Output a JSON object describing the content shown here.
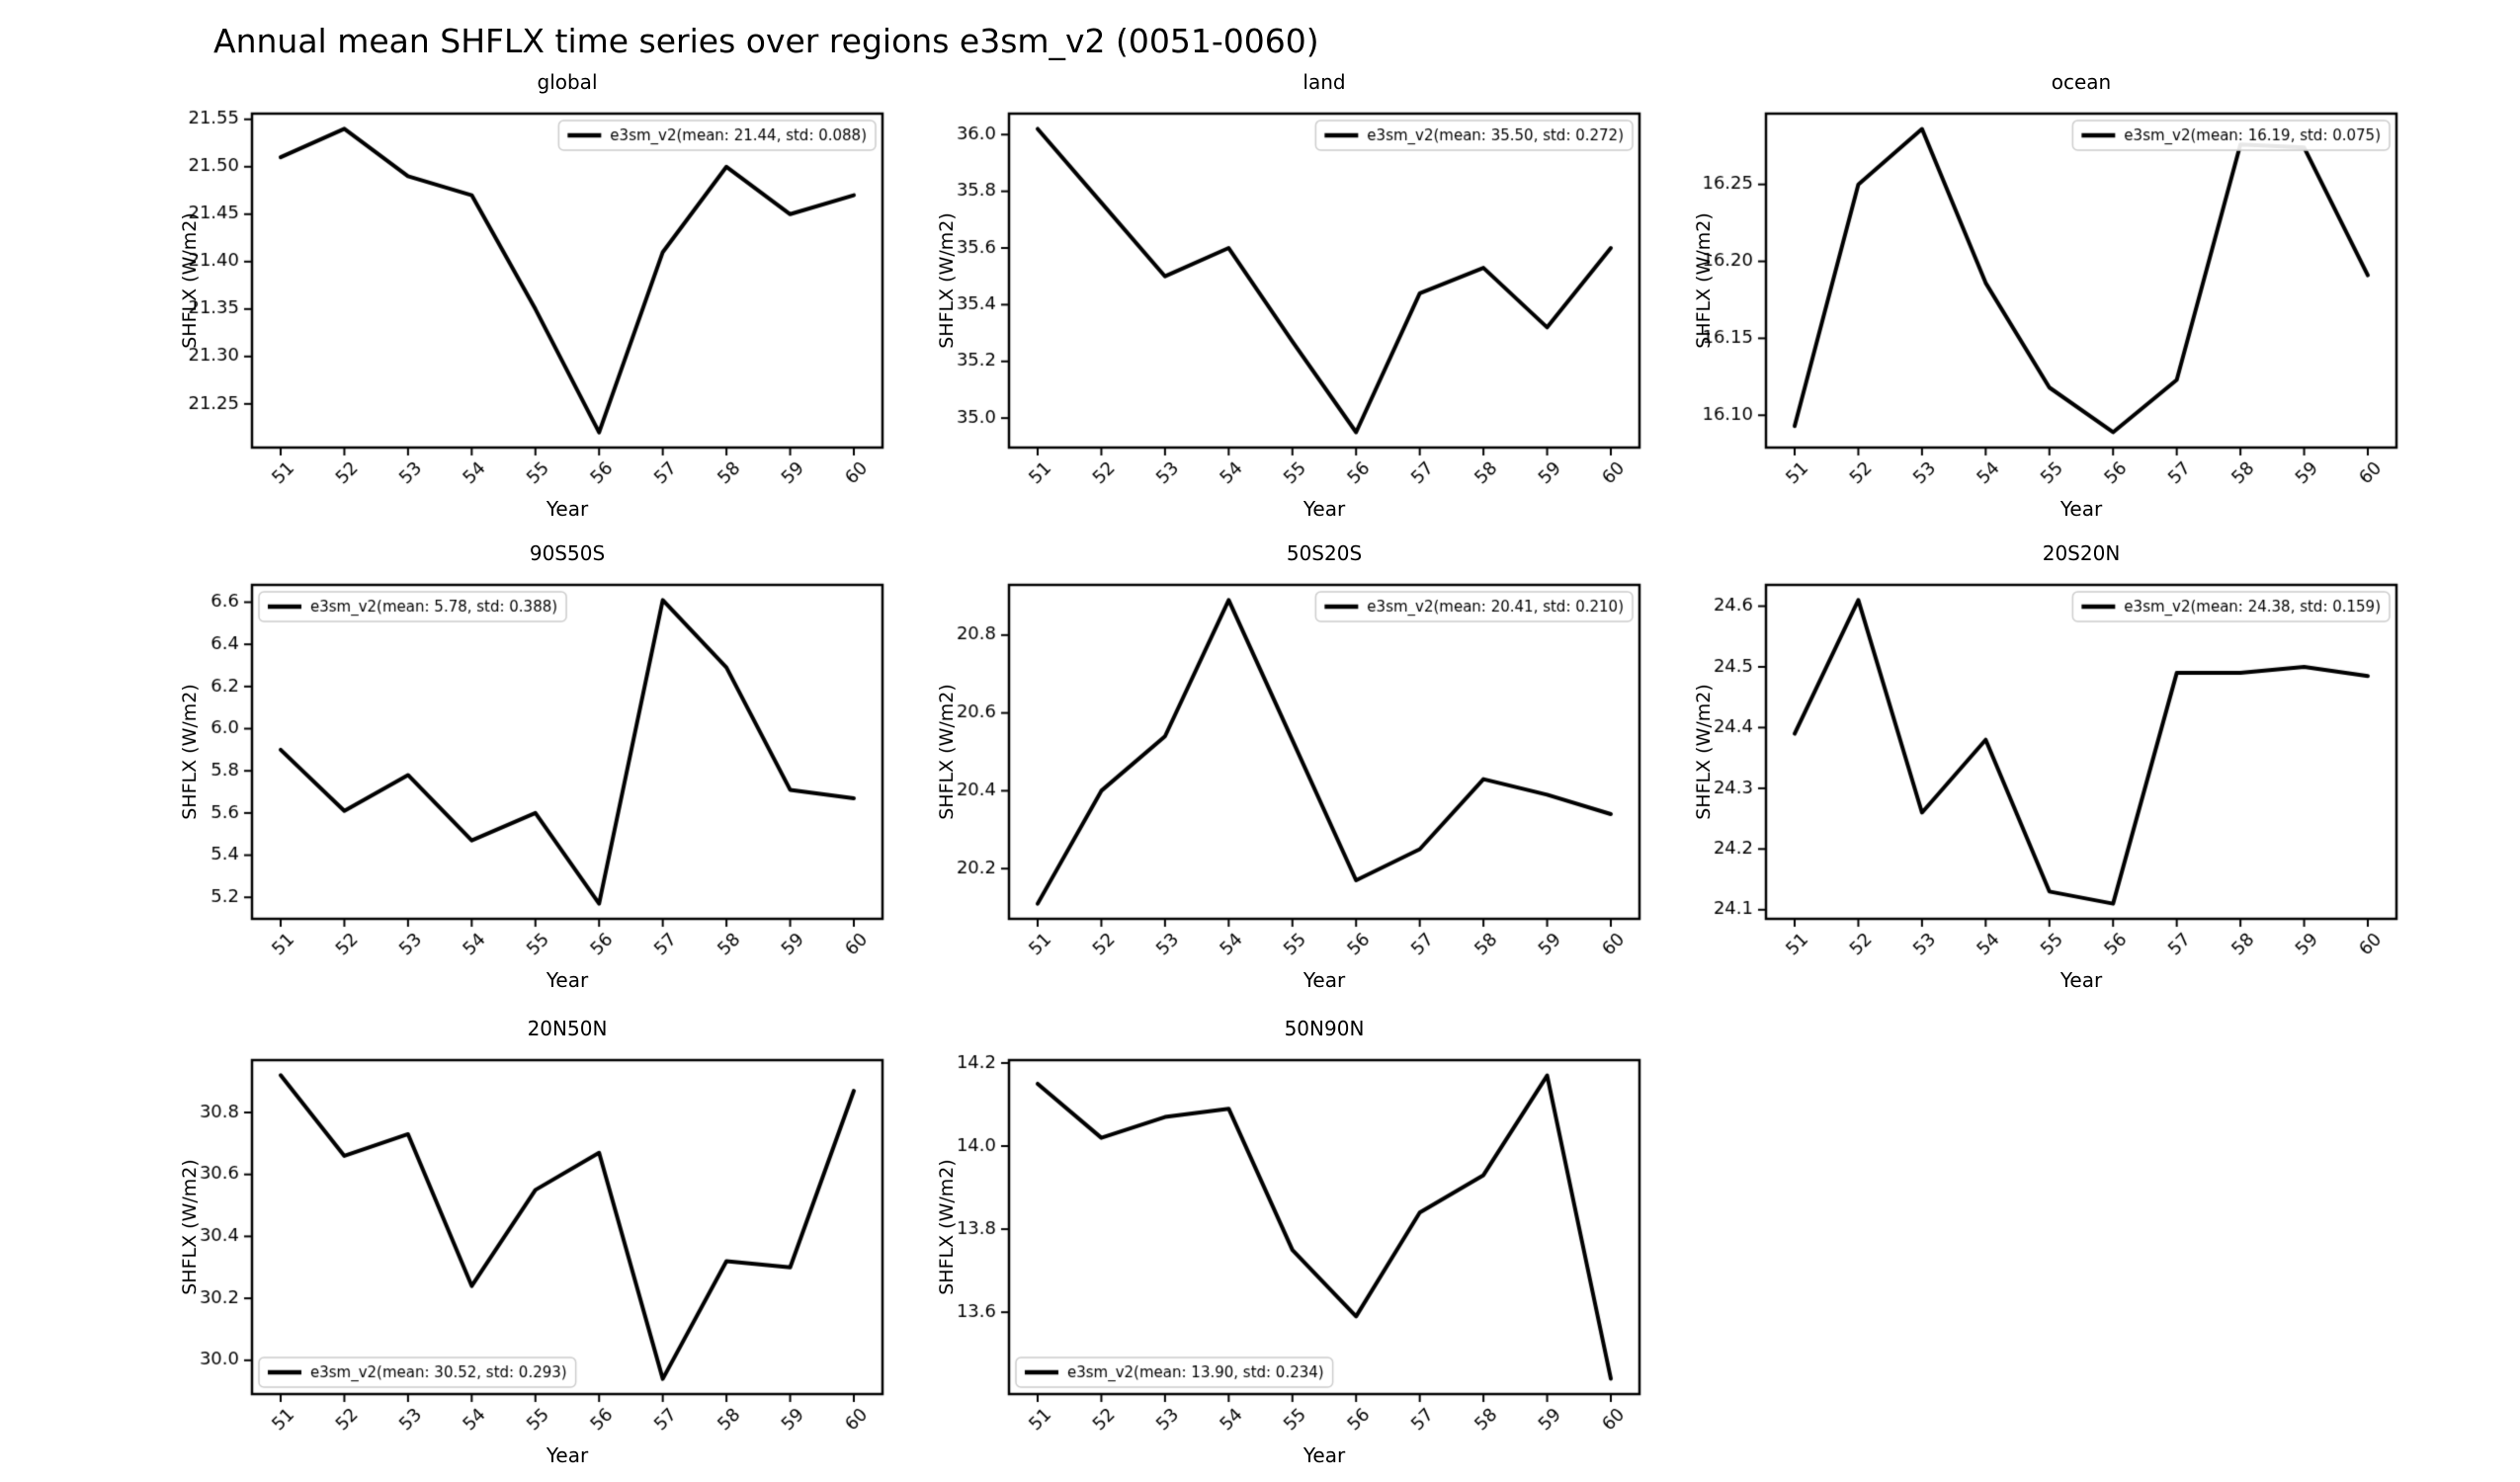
{
  "figure": {
    "title": "Annual mean SHFLX time series over regions e3sm_v2 (0051-0060)",
    "background_color": "#ffffff",
    "line_color": "#000000",
    "axis_color": "#000000",
    "tick_label_color": "#000000",
    "legend_border_color": "#cccccc",
    "legend_background_color": "#ffffff"
  },
  "chart_data": [
    {
      "type": "line",
      "region": "global",
      "title": "global",
      "xlabel": "Year",
      "ylabel": "SHFLX (W/m2)",
      "x": [
        51,
        52,
        53,
        54,
        55,
        56,
        57,
        58,
        59,
        60
      ],
      "xtick_labels": [
        "51",
        "52",
        "53",
        "54",
        "55",
        "56",
        "57",
        "58",
        "59",
        "60"
      ],
      "series": [
        {
          "name": "e3sm_v2(mean: 21.44, std: 0.088)",
          "values": [
            21.51,
            21.54,
            21.49,
            21.47,
            21.35,
            21.22,
            21.41,
            21.5,
            21.45,
            21.47
          ]
        }
      ],
      "stats": {
        "mean": 21.44,
        "std": 0.088
      },
      "yticks": [
        21.25,
        21.3,
        21.35,
        21.4,
        21.45,
        21.5,
        21.55
      ],
      "ytick_labels": [
        "21.25",
        "21.30",
        "21.35",
        "21.40",
        "21.45",
        "21.50",
        "21.55"
      ],
      "ylim": [
        21.204,
        21.556
      ],
      "xlim": [
        50.55,
        60.45
      ],
      "legend_loc": "upper-right",
      "grid": false
    },
    {
      "type": "line",
      "region": "land",
      "title": "land",
      "xlabel": "Year",
      "ylabel": "SHFLX (W/m2)",
      "x": [
        51,
        52,
        53,
        54,
        55,
        56,
        57,
        58,
        59,
        60
      ],
      "xtick_labels": [
        "51",
        "52",
        "53",
        "54",
        "55",
        "56",
        "57",
        "58",
        "59",
        "60"
      ],
      "series": [
        {
          "name": "e3sm_v2(mean: 35.50, std: 0.272)",
          "values": [
            36.02,
            35.76,
            35.5,
            35.6,
            35.27,
            34.95,
            35.44,
            35.53,
            35.32,
            35.6
          ]
        }
      ],
      "stats": {
        "mean": 35.5,
        "std": 0.272
      },
      "yticks": [
        35.0,
        35.2,
        35.4,
        35.6,
        35.8,
        36.0
      ],
      "ytick_labels": [
        "35.0",
        "35.2",
        "35.4",
        "35.6",
        "35.8",
        "36.0"
      ],
      "ylim": [
        34.896,
        36.074
      ],
      "xlim": [
        50.55,
        60.45
      ],
      "legend_loc": "upper-right",
      "grid": false
    },
    {
      "type": "line",
      "region": "ocean",
      "title": "ocean",
      "xlabel": "Year",
      "ylabel": "SHFLX (W/m2)",
      "x": [
        51,
        52,
        53,
        54,
        55,
        56,
        57,
        58,
        59,
        60
      ],
      "xtick_labels": [
        "51",
        "52",
        "53",
        "54",
        "55",
        "56",
        "57",
        "58",
        "59",
        "60"
      ],
      "series": [
        {
          "name": "e3sm_v2(mean: 16.19, std: 0.075)",
          "values": [
            16.093,
            16.25,
            16.286,
            16.186,
            16.118,
            16.089,
            16.123,
            16.276,
            16.274,
            16.191
          ]
        }
      ],
      "stats": {
        "mean": 16.19,
        "std": 0.075
      },
      "yticks": [
        16.1,
        16.15,
        16.2,
        16.25
      ],
      "ytick_labels": [
        "16.10",
        "16.15",
        "16.20",
        "16.25"
      ],
      "ylim": [
        16.079,
        16.296
      ],
      "xlim": [
        50.55,
        60.45
      ],
      "legend_loc": "upper-right",
      "grid": false
    },
    {
      "type": "line",
      "region": "90S50S",
      "title": "90S50S",
      "xlabel": "Year",
      "ylabel": "SHFLX (W/m2)",
      "x": [
        51,
        52,
        53,
        54,
        55,
        56,
        57,
        58,
        59,
        60
      ],
      "xtick_labels": [
        "51",
        "52",
        "53",
        "54",
        "55",
        "56",
        "57",
        "58",
        "59",
        "60"
      ],
      "series": [
        {
          "name": "e3sm_v2(mean: 5.78, std: 0.388)",
          "values": [
            5.9,
            5.61,
            5.78,
            5.47,
            5.6,
            5.17,
            6.61,
            6.29,
            5.71,
            5.67
          ]
        }
      ],
      "stats": {
        "mean": 5.78,
        "std": 0.388
      },
      "yticks": [
        5.2,
        5.4,
        5.6,
        5.8,
        6.0,
        6.2,
        6.4,
        6.6
      ],
      "ytick_labels": [
        "5.2",
        "5.4",
        "5.6",
        "5.8",
        "6.0",
        "6.2",
        "6.4",
        "6.6"
      ],
      "ylim": [
        5.098,
        6.682
      ],
      "xlim": [
        50.55,
        60.45
      ],
      "legend_loc": "upper-left",
      "grid": false
    },
    {
      "type": "line",
      "region": "50S20S",
      "title": "50S20S",
      "xlabel": "Year",
      "ylabel": "SHFLX (W/m2)",
      "x": [
        51,
        52,
        53,
        54,
        55,
        56,
        57,
        58,
        59,
        60
      ],
      "xtick_labels": [
        "51",
        "52",
        "53",
        "54",
        "55",
        "56",
        "57",
        "58",
        "59",
        "60"
      ],
      "series": [
        {
          "name": "e3sm_v2(mean: 20.41, std: 0.210)",
          "values": [
            20.11,
            20.4,
            20.54,
            20.89,
            20.53,
            20.17,
            20.25,
            20.43,
            20.39,
            20.34
          ]
        }
      ],
      "stats": {
        "mean": 20.41,
        "std": 0.21
      },
      "yticks": [
        20.2,
        20.4,
        20.6,
        20.8
      ],
      "ytick_labels": [
        "20.2",
        "20.4",
        "20.6",
        "20.8"
      ],
      "ylim": [
        20.071,
        20.929
      ],
      "xlim": [
        50.55,
        60.45
      ],
      "legend_loc": "upper-right",
      "grid": false
    },
    {
      "type": "line",
      "region": "20S20N",
      "title": "20S20N",
      "xlabel": "Year",
      "ylabel": "SHFLX (W/m2)",
      "x": [
        51,
        52,
        53,
        54,
        55,
        56,
        57,
        58,
        59,
        60
      ],
      "xtick_labels": [
        "51",
        "52",
        "53",
        "54",
        "55",
        "56",
        "57",
        "58",
        "59",
        "60"
      ],
      "series": [
        {
          "name": "e3sm_v2(mean: 24.38, std: 0.159)",
          "values": [
            24.39,
            24.61,
            24.26,
            24.38,
            24.13,
            24.11,
            24.49,
            24.49,
            24.5,
            24.485
          ]
        }
      ],
      "stats": {
        "mean": 24.38,
        "std": 0.159
      },
      "yticks": [
        24.1,
        24.2,
        24.3,
        24.4,
        24.5,
        24.6
      ],
      "ytick_labels": [
        "24.1",
        "24.2",
        "24.3",
        "24.4",
        "24.5",
        "24.6"
      ],
      "ylim": [
        24.085,
        24.635
      ],
      "xlim": [
        50.55,
        60.45
      ],
      "legend_loc": "upper-right",
      "grid": false
    },
    {
      "type": "line",
      "region": "20N50N",
      "title": "20N50N",
      "xlabel": "Year",
      "ylabel": "SHFLX (W/m2)",
      "x": [
        51,
        52,
        53,
        54,
        55,
        56,
        57,
        58,
        59,
        60
      ],
      "xtick_labels": [
        "51",
        "52",
        "53",
        "54",
        "55",
        "56",
        "57",
        "58",
        "59",
        "60"
      ],
      "series": [
        {
          "name": "e3sm_v2(mean: 30.52, std: 0.293)",
          "values": [
            30.92,
            30.66,
            30.73,
            30.24,
            30.55,
            30.67,
            29.94,
            30.32,
            30.3,
            30.87
          ]
        }
      ],
      "stats": {
        "mean": 30.52,
        "std": 0.293
      },
      "yticks": [
        30.0,
        30.2,
        30.4,
        30.6,
        30.8
      ],
      "ytick_labels": [
        "30.0",
        "30.2",
        "30.4",
        "30.6",
        "30.8"
      ],
      "ylim": [
        29.891,
        30.969
      ],
      "xlim": [
        50.55,
        60.45
      ],
      "legend_loc": "lower-left",
      "grid": false
    },
    {
      "type": "line",
      "region": "50N90N",
      "title": "50N90N",
      "xlabel": "Year",
      "ylabel": "SHFLX (W/m2)",
      "x": [
        51,
        52,
        53,
        54,
        55,
        56,
        57,
        58,
        59,
        60
      ],
      "xtick_labels": [
        "51",
        "52",
        "53",
        "54",
        "55",
        "56",
        "57",
        "58",
        "59",
        "60"
      ],
      "series": [
        {
          "name": "e3sm_v2(mean: 13.90, std: 0.234)",
          "values": [
            14.15,
            14.02,
            14.07,
            14.09,
            13.75,
            13.59,
            13.84,
            13.93,
            14.17,
            13.44
          ]
        }
      ],
      "stats": {
        "mean": 13.9,
        "std": 0.234
      },
      "yticks": [
        13.6,
        13.8,
        14.0,
        14.2
      ],
      "ytick_labels": [
        "13.6",
        "13.8",
        "14.0",
        "14.2"
      ],
      "ylim": [
        13.403,
        14.207
      ],
      "xlim": [
        50.55,
        60.45
      ],
      "legend_loc": "lower-left",
      "grid": false
    }
  ]
}
